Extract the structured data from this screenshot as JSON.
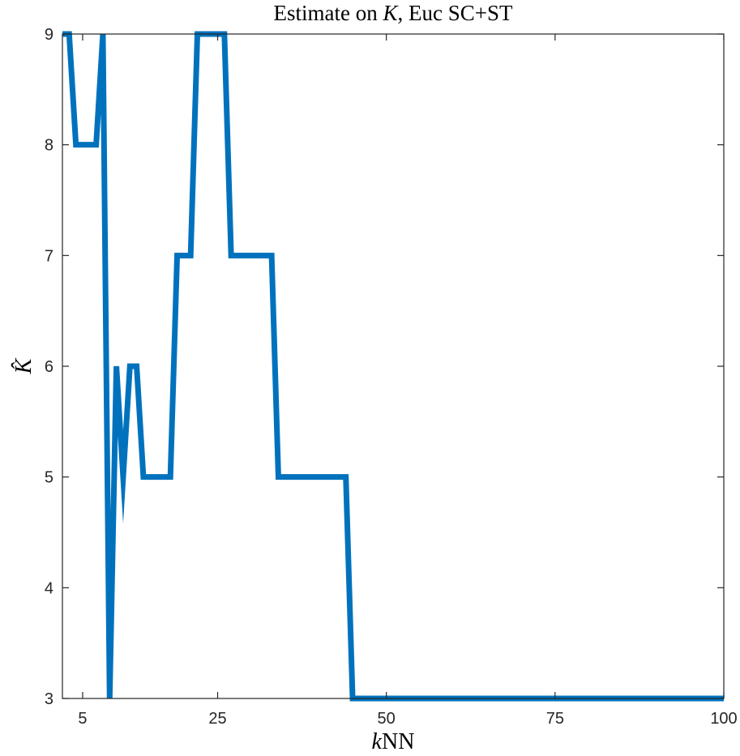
{
  "chart_data": {
    "type": "line",
    "title": "Estimate on K, Euc SC+ST",
    "title_parts": {
      "before": "Estimate on ",
      "italic": "K",
      "after": ", Euc SC+ST"
    },
    "xlabel": "kNN",
    "xlabel_parts": {
      "italic": "k",
      "rest": "NN"
    },
    "ylabel": "K̂",
    "xlim": [
      2,
      100
    ],
    "ylim": [
      3,
      9
    ],
    "xticks": [
      5,
      25,
      50,
      75,
      100
    ],
    "yticks": [
      3,
      4,
      5,
      6,
      7,
      8,
      9
    ],
    "grid": false,
    "line_color": "#0072BD",
    "series": [
      {
        "x": [
          2,
          3,
          4,
          5,
          6,
          7,
          8,
          9,
          10,
          11,
          12,
          13,
          14,
          15,
          16,
          17,
          18,
          19,
          20,
          21,
          22,
          23,
          24,
          25,
          26,
          27,
          28,
          29,
          30,
          31,
          32,
          33,
          34,
          35,
          36,
          37,
          38,
          39,
          40,
          41,
          42,
          43,
          44,
          45,
          46,
          47,
          48,
          49,
          50,
          51,
          52,
          53,
          54,
          55,
          56,
          57,
          58,
          59,
          60,
          61,
          62,
          63,
          64,
          65,
          66,
          67,
          68,
          69,
          70,
          71,
          72,
          73,
          74,
          75,
          76,
          77,
          78,
          79,
          80,
          81,
          82,
          83,
          84,
          85,
          86,
          87,
          88,
          89,
          90,
          91,
          92,
          93,
          94,
          95,
          96,
          97,
          98,
          99,
          100
        ],
        "y": [
          9,
          9,
          8,
          8,
          8,
          8,
          9,
          3,
          6,
          5,
          6,
          6,
          5,
          5,
          5,
          5,
          5,
          7,
          7,
          7,
          9,
          9,
          9,
          9,
          9,
          7,
          7,
          7,
          7,
          7,
          7,
          7,
          5,
          5,
          5,
          5,
          5,
          5,
          5,
          5,
          5,
          5,
          5,
          3,
          3,
          3,
          3,
          3,
          3,
          3,
          3,
          3,
          3,
          3,
          3,
          3,
          3,
          3,
          3,
          3,
          3,
          3,
          3,
          3,
          3,
          3,
          3,
          3,
          3,
          3,
          3,
          3,
          3,
          3,
          3,
          3,
          3,
          3,
          3,
          3,
          3,
          3,
          3,
          3,
          3,
          3,
          3,
          3,
          3,
          3,
          3,
          3,
          3,
          3,
          3,
          3,
          3,
          3,
          3
        ]
      }
    ]
  }
}
